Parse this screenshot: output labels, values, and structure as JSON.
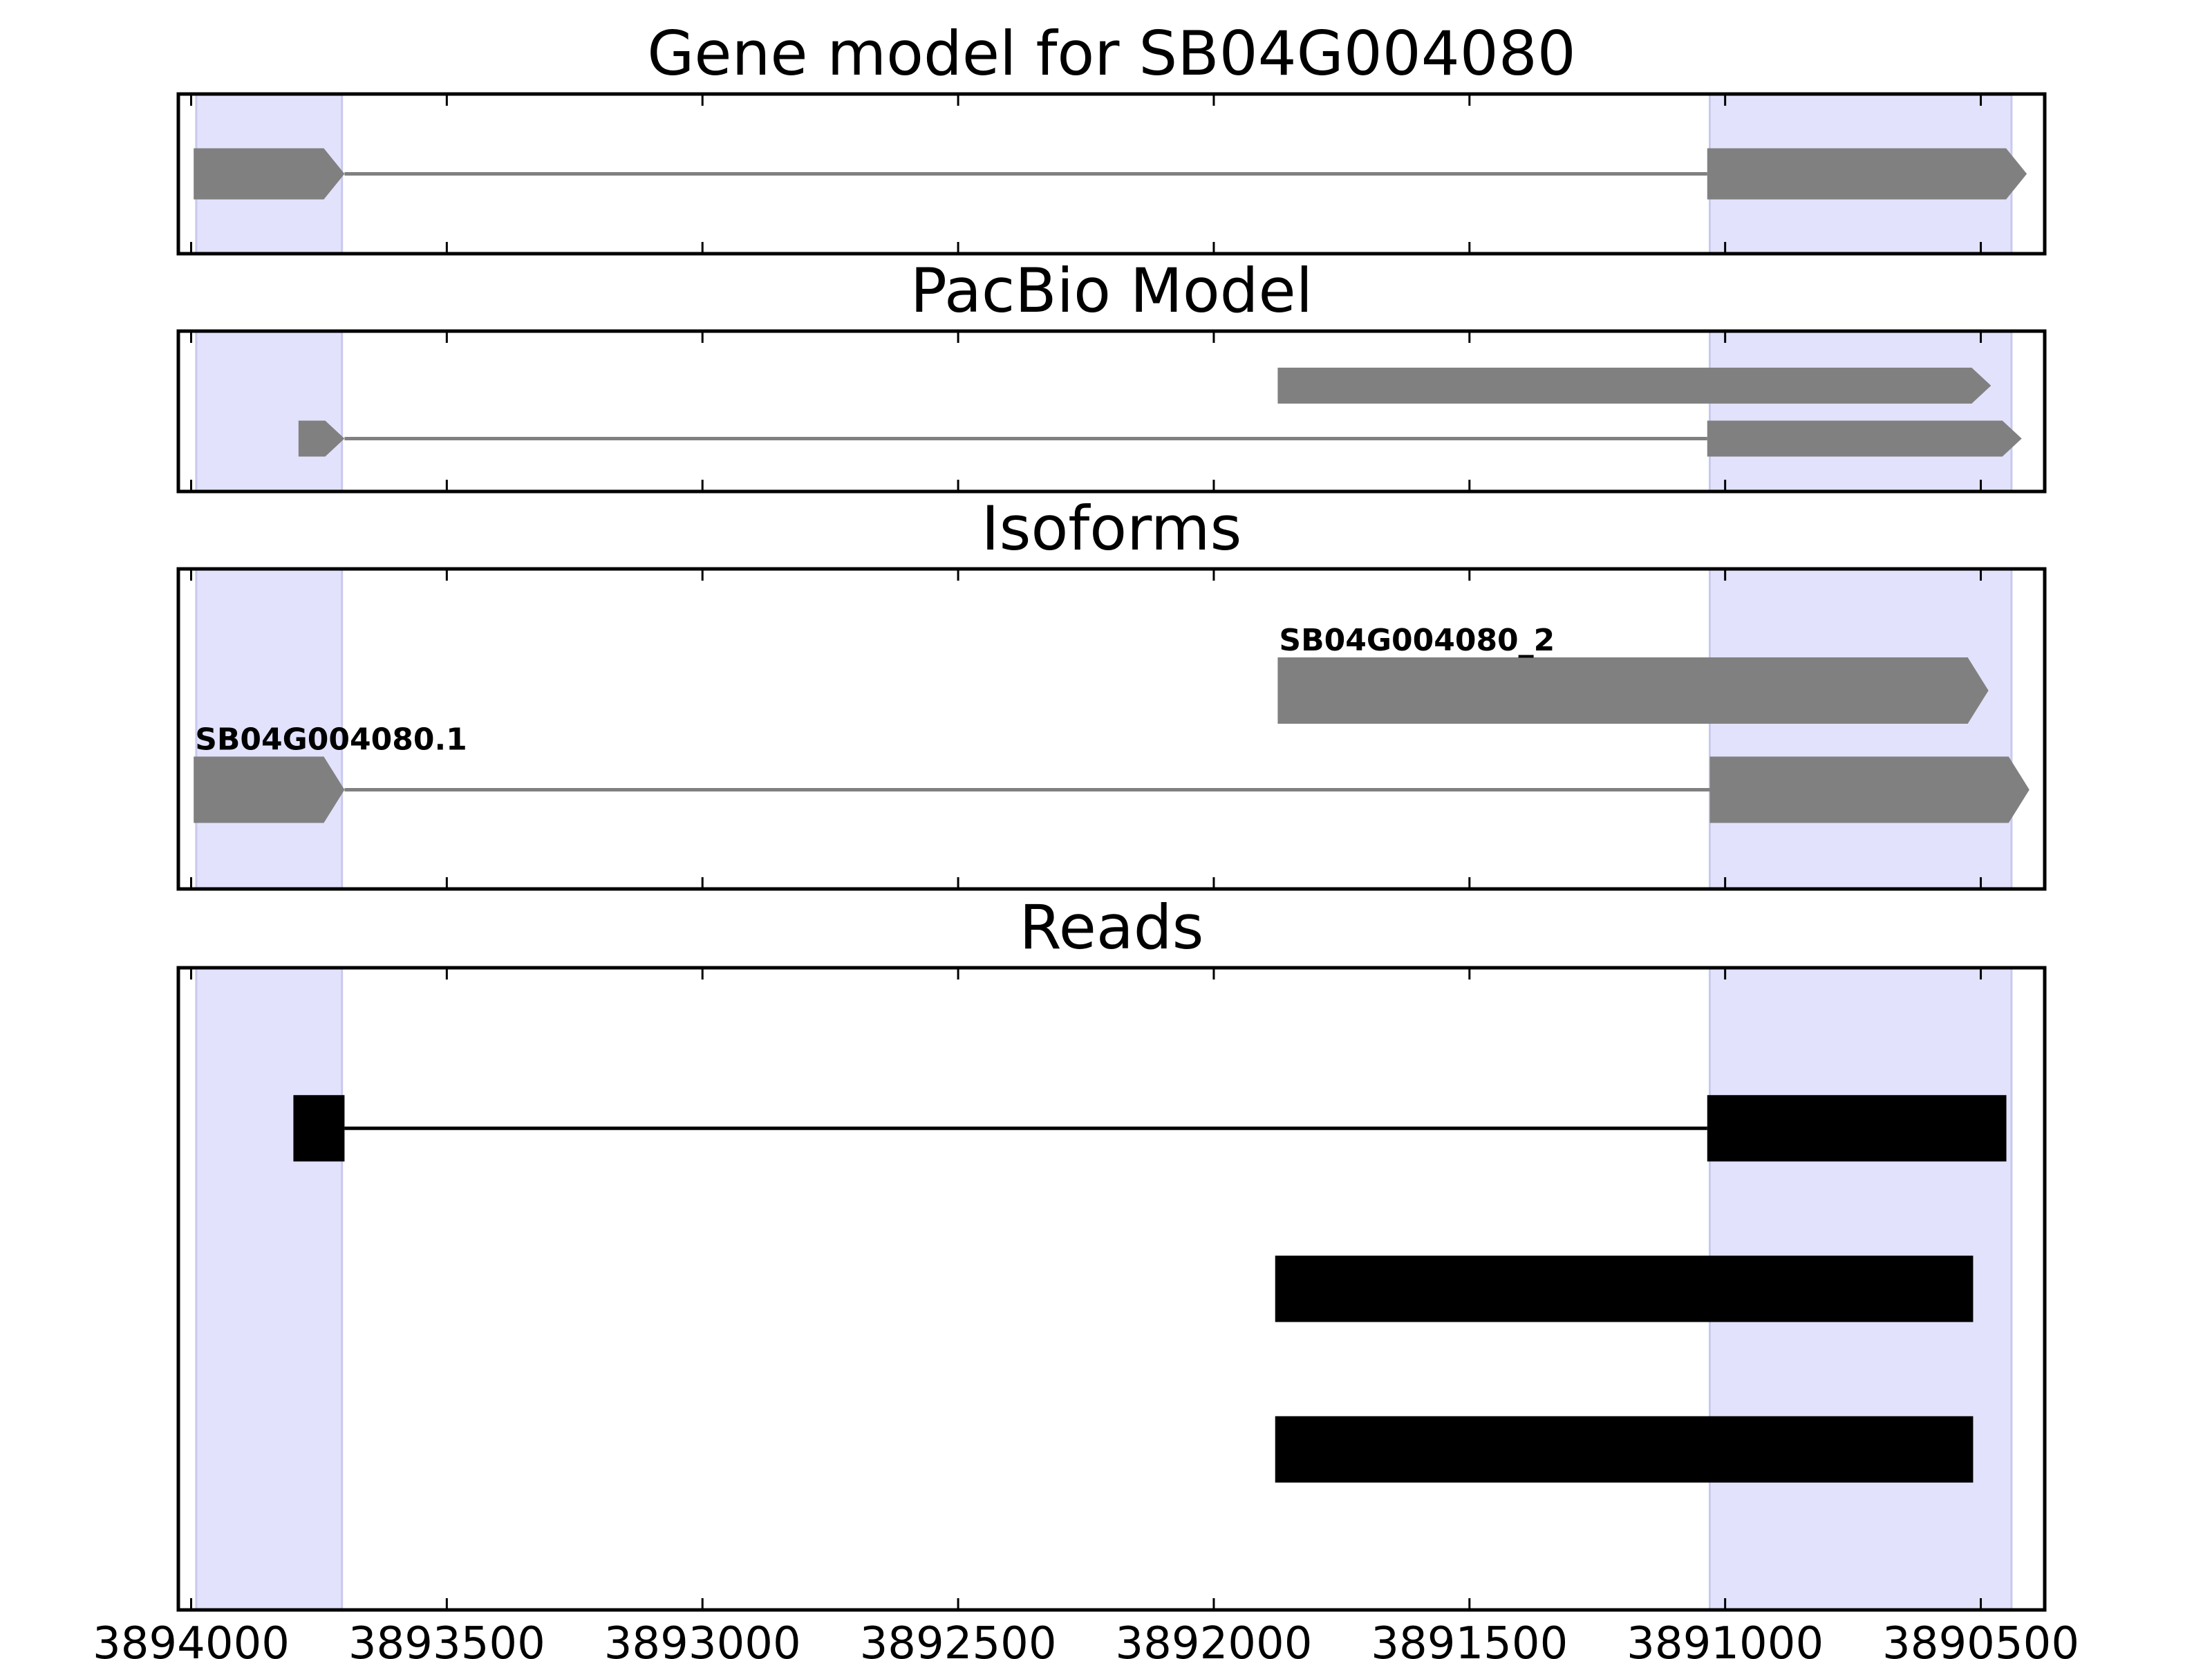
{
  "chart_data": {
    "type": "gene-track",
    "x_reversed": true,
    "xlim": [
      3894025,
      3890375
    ],
    "xticks": [
      3894000,
      3893500,
      3893000,
      3892500,
      3892000,
      3891500,
      3891000,
      3890500
    ],
    "xtick_labels": [
      "3894000",
      "3893500",
      "3893000",
      "3892500",
      "3892000",
      "3891500",
      "3891000",
      "3890500"
    ],
    "highlight_regions": [
      {
        "start": 3893990,
        "end": 3893705
      },
      {
        "start": 3891030,
        "end": 3890440
      }
    ],
    "colors": {
      "model": "#808080",
      "read": "#000000",
      "highlight": "#e2e2fc",
      "highlight_edge": "#c9c9ee"
    },
    "panels": [
      {
        "id": "gene-model",
        "title": "Gene model for SB04G004080",
        "tracks": [
          {
            "y": 0.5,
            "exons": [
              [
                3893995,
                3893700
              ],
              [
                3891035,
                3890410
              ]
            ],
            "arrow": true
          }
        ]
      },
      {
        "id": "pacbio-model",
        "title": "PacBio Model",
        "tracks": [
          {
            "y": 0.66,
            "exons": [
              [
                3891875,
                3890480
              ]
            ],
            "arrow": true
          },
          {
            "y": 0.33,
            "exons": [
              [
                3893790,
                3893700
              ],
              [
                3891035,
                3890420
              ]
            ],
            "arrow": true
          }
        ]
      },
      {
        "id": "isoforms",
        "title": "Isoforms",
        "tracks": [
          {
            "y": 0.62,
            "label": "SB04G004080_2",
            "exons": [
              [
                3891875,
                3890485
              ]
            ],
            "arrow": true
          },
          {
            "y": 0.31,
            "label": "SB04G004080.1",
            "exons": [
              [
                3893995,
                3893700
              ],
              [
                3891030,
                3890405
              ]
            ],
            "arrow": true
          }
        ]
      },
      {
        "id": "reads",
        "title": "Reads",
        "tracks": [
          {
            "y": 0.75,
            "exons": [
              [
                3893800,
                3893700
              ],
              [
                3891035,
                3890450
              ]
            ],
            "arrow": false
          },
          {
            "y": 0.5,
            "exons": [
              [
                3891880,
                3890515
              ]
            ],
            "arrow": false
          },
          {
            "y": 0.25,
            "exons": [
              [
                3891880,
                3890515
              ]
            ],
            "arrow": false
          }
        ]
      }
    ]
  }
}
